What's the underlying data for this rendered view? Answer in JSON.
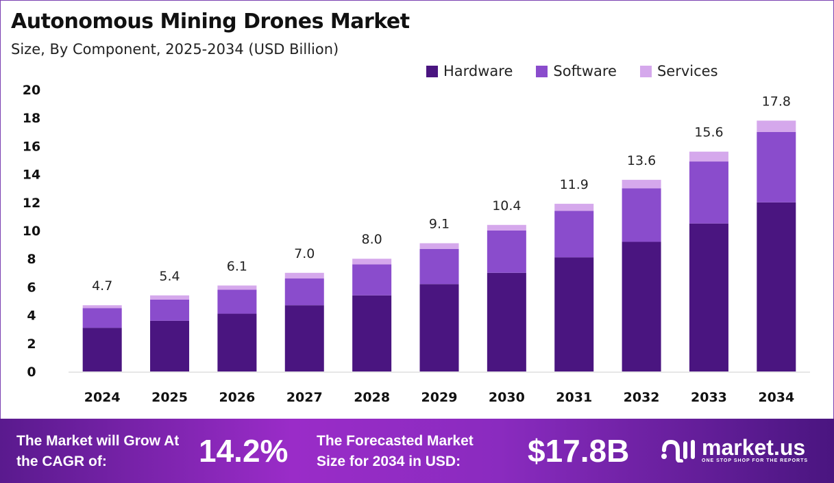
{
  "title": "Autonomous Mining Drones Market",
  "subtitle": "Size, By Component, 2025-2034 (USD Billion)",
  "colors": {
    "hardware": "#4a1580",
    "software": "#8a4ccc",
    "services": "#d5a8ec"
  },
  "chart_data": {
    "type": "bar",
    "stacked": true,
    "categories": [
      "2024",
      "2025",
      "2026",
      "2027",
      "2028",
      "2029",
      "2030",
      "2031",
      "2032",
      "2033",
      "2034"
    ],
    "series": [
      {
        "name": "Hardware",
        "values": [
          3.1,
          3.6,
          4.1,
          4.7,
          5.4,
          6.2,
          7.0,
          8.1,
          9.2,
          10.5,
          12.0
        ]
      },
      {
        "name": "Software",
        "values": [
          1.4,
          1.5,
          1.7,
          1.9,
          2.2,
          2.5,
          3.0,
          3.3,
          3.8,
          4.4,
          5.0
        ]
      },
      {
        "name": "Services",
        "values": [
          0.2,
          0.3,
          0.3,
          0.4,
          0.4,
          0.4,
          0.4,
          0.5,
          0.6,
          0.7,
          0.8
        ]
      }
    ],
    "totals": [
      "4.7",
      "5.4",
      "6.1",
      "7.0",
      "8.0",
      "9.1",
      "10.4",
      "11.9",
      "13.6",
      "15.6",
      "17.8"
    ],
    "yticks": [
      "0",
      "2",
      "4",
      "6",
      "8",
      "10",
      "12",
      "14",
      "16",
      "18",
      "20"
    ],
    "ylim": [
      0,
      20
    ],
    "grid": false,
    "legend": "top-right"
  },
  "footer": {
    "cagr_label": "The Market will Grow At the CAGR of:",
    "cagr_value": "14.2%",
    "forecast_label": "The Forecasted Market Size for 2034 in USD:",
    "forecast_value": "$17.8B",
    "logo_name": "market.us",
    "logo_tagline": "ONE STOP SHOP FOR THE REPORTS"
  }
}
